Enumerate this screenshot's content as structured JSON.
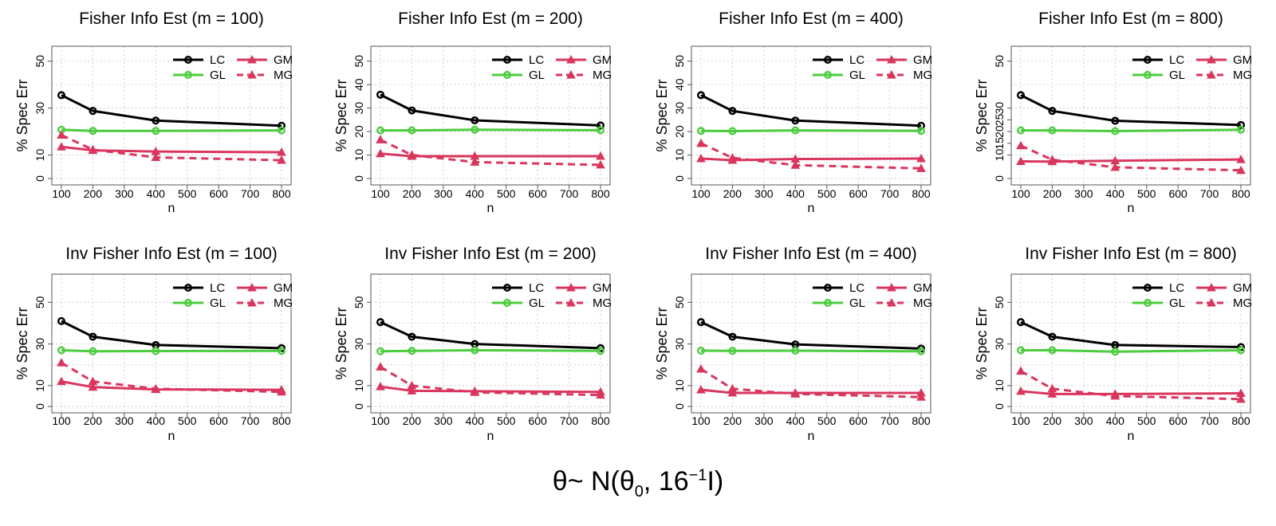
{
  "figure_caption": {
    "theta": "θ~ N(θ",
    "sub": "0",
    "comma": ", 16",
    "sup": "−1",
    "tail": "I)"
  },
  "colors": {
    "LC": "#000000",
    "GL": "#4ccc3f",
    "GM": "#d9365e",
    "MG": "#d9365e",
    "grid": "#cfcfcf"
  },
  "chart_data": [
    {
      "type": "line",
      "title": "Fisher Info Est (m = 100)",
      "xlabel": "n",
      "ylabel": "% Spec Err",
      "x": [
        100,
        200,
        400,
        800
      ],
      "xlim": [
        100,
        800
      ],
      "ylim": [
        0,
        55
      ],
      "xticks": [
        100,
        200,
        300,
        400,
        500,
        600,
        700,
        800
      ],
      "yticks": [
        0,
        10,
        30,
        50
      ],
      "legend": "top-right",
      "series": [
        {
          "name": "LC",
          "values": [
            35.5,
            28.8,
            24.7,
            22.5
          ]
        },
        {
          "name": "GL",
          "values": [
            20.8,
            20.3,
            20.3,
            20.5
          ]
        },
        {
          "name": "GM",
          "values": [
            13.5,
            12.0,
            11.5,
            11.2
          ]
        },
        {
          "name": "MG",
          "values": [
            18.5,
            12.3,
            9.0,
            7.8
          ]
        }
      ]
    },
    {
      "type": "line",
      "title": "Fisher Info Est (m = 200)",
      "xlabel": "n",
      "ylabel": "% Spec Err",
      "x": [
        100,
        200,
        400,
        800
      ],
      "xlim": [
        100,
        800
      ],
      "ylim": [
        0,
        55
      ],
      "xticks": [
        100,
        200,
        300,
        400,
        500,
        600,
        700,
        800
      ],
      "yticks": [
        0,
        10,
        20,
        30,
        40,
        50
      ],
      "legend": "top-right",
      "series": [
        {
          "name": "LC",
          "values": [
            35.7,
            29.0,
            24.8,
            22.6
          ]
        },
        {
          "name": "GL",
          "values": [
            20.5,
            20.5,
            20.8,
            20.6
          ]
        },
        {
          "name": "GM",
          "values": [
            10.6,
            9.5,
            9.5,
            9.5
          ]
        },
        {
          "name": "MG",
          "values": [
            16.5,
            10.0,
            7.0,
            5.8
          ]
        }
      ]
    },
    {
      "type": "line",
      "title": "Fisher Info Est (m = 400)",
      "xlabel": "n",
      "ylabel": "% Spec Err",
      "x": [
        100,
        200,
        400,
        800
      ],
      "xlim": [
        100,
        800
      ],
      "ylim": [
        0,
        55
      ],
      "xticks": [
        100,
        200,
        300,
        400,
        500,
        600,
        700,
        800
      ],
      "yticks": [
        0,
        10,
        20,
        30,
        40,
        50
      ],
      "legend": "top-right",
      "series": [
        {
          "name": "LC",
          "values": [
            35.5,
            28.8,
            24.7,
            22.5
          ]
        },
        {
          "name": "GL",
          "values": [
            20.3,
            20.2,
            20.5,
            20.3
          ]
        },
        {
          "name": "GM",
          "values": [
            8.5,
            7.8,
            8.3,
            8.5
          ]
        },
        {
          "name": "MG",
          "values": [
            15.0,
            8.8,
            5.7,
            4.3
          ]
        }
      ]
    },
    {
      "type": "line",
      "title": "Fisher Info Est (m = 800)",
      "xlabel": "n",
      "ylabel": "% Spec Err",
      "x": [
        100,
        200,
        400,
        800
      ],
      "xlim": [
        100,
        800
      ],
      "ylim": [
        0,
        55
      ],
      "xticks": [
        100,
        200,
        300,
        400,
        500,
        600,
        700,
        800
      ],
      "yticks": [
        0,
        10,
        15,
        20,
        25,
        30,
        50
      ],
      "legend": "top-right",
      "series": [
        {
          "name": "LC",
          "values": [
            35.5,
            28.8,
            24.6,
            22.8
          ]
        },
        {
          "name": "GL",
          "values": [
            20.5,
            20.5,
            20.2,
            20.8
          ]
        },
        {
          "name": "GM",
          "values": [
            7.3,
            7.2,
            7.6,
            8.1
          ]
        },
        {
          "name": "MG",
          "values": [
            14.0,
            8.0,
            4.8,
            3.5
          ]
        }
      ]
    },
    {
      "type": "line",
      "title": "Inv Fisher Info Est (m = 100)",
      "xlabel": "n",
      "ylabel": "% Spec Err",
      "x": [
        100,
        200,
        400,
        800
      ],
      "xlim": [
        100,
        800
      ],
      "ylim": [
        0,
        62
      ],
      "xticks": [
        100,
        200,
        300,
        400,
        500,
        600,
        700,
        800
      ],
      "yticks": [
        0,
        10,
        30,
        50
      ],
      "legend": "top-right",
      "series": [
        {
          "name": "LC",
          "values": [
            41.0,
            33.5,
            29.5,
            28.0
          ]
        },
        {
          "name": "GL",
          "values": [
            27.0,
            26.5,
            26.6,
            26.7
          ]
        },
        {
          "name": "GM",
          "values": [
            12.0,
            9.3,
            8.2,
            8.0
          ]
        },
        {
          "name": "MG",
          "values": [
            21.0,
            12.0,
            8.5,
            7.0
          ]
        }
      ]
    },
    {
      "type": "line",
      "title": "Inv Fisher Info Est (m = 200)",
      "xlabel": "n",
      "ylabel": "% Spec Err",
      "x": [
        100,
        200,
        400,
        800
      ],
      "xlim": [
        100,
        800
      ],
      "ylim": [
        0,
        62
      ],
      "xticks": [
        100,
        200,
        300,
        400,
        500,
        600,
        700,
        800
      ],
      "yticks": [
        0,
        10,
        30,
        50
      ],
      "legend": "top-right",
      "series": [
        {
          "name": "LC",
          "values": [
            40.5,
            33.5,
            30.0,
            28.0
          ]
        },
        {
          "name": "GL",
          "values": [
            26.5,
            26.7,
            27.0,
            26.7
          ]
        },
        {
          "name": "GM",
          "values": [
            9.5,
            7.5,
            7.3,
            7.0
          ]
        },
        {
          "name": "MG",
          "values": [
            19.0,
            10.0,
            6.8,
            5.5
          ]
        }
      ]
    },
    {
      "type": "line",
      "title": "Inv Fisher Info Est (m = 400)",
      "xlabel": "n",
      "ylabel": "% Spec Err",
      "x": [
        100,
        200,
        400,
        800
      ],
      "xlim": [
        100,
        800
      ],
      "ylim": [
        0,
        62
      ],
      "xticks": [
        100,
        200,
        300,
        400,
        500,
        600,
        700,
        800
      ],
      "yticks": [
        0,
        10,
        30,
        50
      ],
      "legend": "top-right",
      "series": [
        {
          "name": "LC",
          "values": [
            40.5,
            33.5,
            29.8,
            27.8
          ]
        },
        {
          "name": "GL",
          "values": [
            26.8,
            26.7,
            26.8,
            26.5
          ]
        },
        {
          "name": "GM",
          "values": [
            8.0,
            6.5,
            6.5,
            6.5
          ]
        },
        {
          "name": "MG",
          "values": [
            18.0,
            8.5,
            6.0,
            4.5
          ]
        }
      ]
    },
    {
      "type": "line",
      "title": "Inv Fisher Info Est (m = 800)",
      "xlabel": "n",
      "ylabel": "% Spec Err",
      "x": [
        100,
        200,
        400,
        800
      ],
      "xlim": [
        100,
        800
      ],
      "ylim": [
        0,
        62
      ],
      "xticks": [
        100,
        200,
        300,
        400,
        500,
        600,
        700,
        800
      ],
      "yticks": [
        0,
        10,
        30,
        50
      ],
      "legend": "top-right",
      "series": [
        {
          "name": "LC",
          "values": [
            40.5,
            33.5,
            29.5,
            28.5
          ]
        },
        {
          "name": "GL",
          "values": [
            27.0,
            27.0,
            26.3,
            27.0
          ]
        },
        {
          "name": "GM",
          "values": [
            7.3,
            6.0,
            6.0,
            6.3
          ]
        },
        {
          "name": "MG",
          "values": [
            17.0,
            8.5,
            5.0,
            3.5
          ]
        }
      ]
    }
  ]
}
